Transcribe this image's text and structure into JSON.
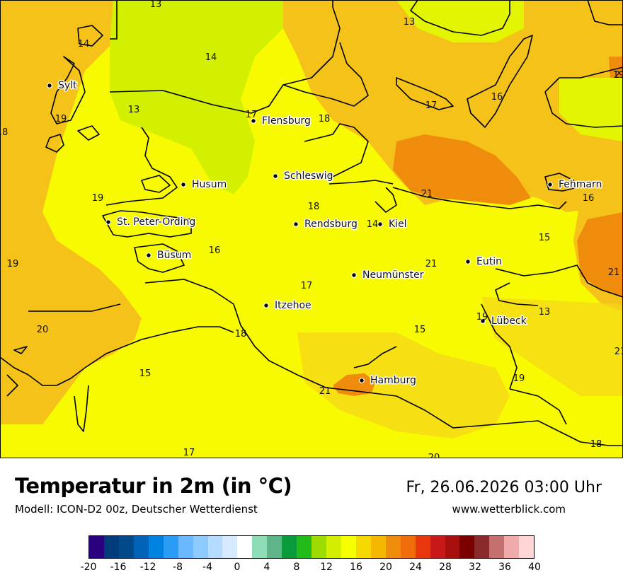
{
  "header": {
    "title": "Temperatur in 2m (in °C)",
    "subtitle": "Modell: ICON-D2 00z, Deutscher Wetterdienst",
    "datetime": "Fr, 26.06.2026 03:00 Uhr",
    "website": "www.wetterblick.com"
  },
  "map": {
    "cities": [
      {
        "name": "Sylt"
      },
      {
        "name": "Flensburg"
      },
      {
        "name": "Schleswig"
      },
      {
        "name": "Husum"
      },
      {
        "name": "St. Peter-Ording"
      },
      {
        "name": "Rendsburg"
      },
      {
        "name": "Kiel"
      },
      {
        "name": "Büsum"
      },
      {
        "name": "Neumünster"
      },
      {
        "name": "Eutin"
      },
      {
        "name": "Itzehoe"
      },
      {
        "name": "Lübeck"
      },
      {
        "name": "Hamburg"
      },
      {
        "name": "Fehmarn"
      }
    ],
    "temperature_labels": [
      "13",
      "14",
      "14",
      "13",
      "13",
      "17",
      "18",
      "19",
      "18",
      "16",
      "17",
      "19",
      "19",
      "18",
      "21",
      "16",
      "15",
      "14",
      "16",
      "21",
      "21",
      "17",
      "19",
      "20",
      "18",
      "15",
      "19",
      "13",
      "15",
      "21",
      "19",
      "17",
      "20",
      "18",
      "21",
      "21"
    ]
  },
  "legend": {
    "colors": [
      "#2a0080",
      "#003c7a",
      "#004a8c",
      "#0063b8",
      "#0082e0",
      "#2a9cf5",
      "#6ab8ff",
      "#8ccaff",
      "#b5dcff",
      "#d5eaff",
      "#ffffff",
      "#8fdcb8",
      "#5fb58a",
      "#0a9a3a",
      "#22bb1a",
      "#9ddc00",
      "#d4ee00",
      "#f5ff00",
      "#f5d800",
      "#f4b800",
      "#f08c0c",
      "#f06d0c",
      "#e8370c",
      "#c81818",
      "#a81010",
      "#7a0000",
      "#8a2a2a",
      "#c47070",
      "#f0aaaa",
      "#ffd5d5"
    ],
    "tick_labels": [
      "-20",
      "-16",
      "-12",
      "-8",
      "-4",
      "0",
      "4",
      "8",
      "12",
      "16",
      "20",
      "24",
      "28",
      "32",
      "36",
      "40"
    ]
  }
}
